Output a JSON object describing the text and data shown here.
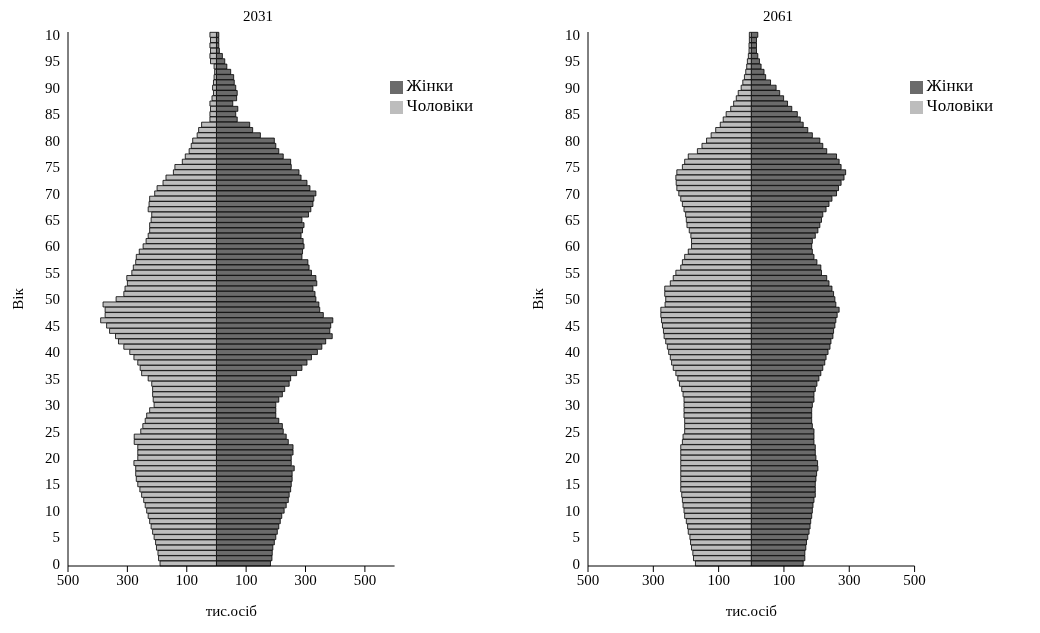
{
  "chart_data": [
    {
      "type": "bar",
      "title": "2031",
      "xlabel": "тис.осіб",
      "ylabel": "Вік",
      "orientation": "horizontal",
      "stacked": true,
      "legend": "top right",
      "categories": [
        "10",
        null,
        null,
        null,
        null,
        "95",
        null,
        null,
        null,
        null,
        "90",
        null,
        null,
        null,
        null,
        "85",
        null,
        null,
        null,
        null,
        "80",
        null,
        null,
        null,
        null,
        "75",
        null,
        null,
        null,
        null,
        "70",
        null,
        null,
        null,
        null,
        "65",
        null,
        null,
        null,
        null,
        "60",
        null,
        null,
        null,
        null,
        "55",
        null,
        null,
        null,
        null,
        "50",
        null,
        null,
        null,
        null,
        "45",
        null,
        null,
        null,
        null,
        "40",
        null,
        null,
        null,
        null,
        "35",
        null,
        null,
        null,
        null,
        "30",
        null,
        null,
        null,
        null,
        "25",
        null,
        null,
        null,
        null,
        "20",
        null,
        null,
        null,
        null,
        "15",
        null,
        null,
        null,
        null,
        "10",
        null,
        null,
        null,
        null,
        "5",
        null,
        null,
        null,
        null,
        "0"
      ],
      "xlim": [
        -500,
        600
      ],
      "xticks": [
        {
          "value": -500,
          "label": "500"
        },
        {
          "value": -300,
          "label": "300"
        },
        {
          "value": -100,
          "label": "100"
        },
        100,
        300,
        500
      ],
      "series": [
        {
          "name": "Жінки",
          "color": "#6b6b6b",
          "values": [
            8,
            8,
            8,
            10,
            20,
            28,
            35,
            48,
            58,
            60,
            65,
            70,
            68,
            55,
            72,
            65,
            70,
            112,
            122,
            148,
            195,
            200,
            210,
            225,
            250,
            252,
            278,
            285,
            305,
            315,
            335,
            328,
            325,
            318,
            310,
            288,
            295,
            290,
            285,
            292,
            295,
            290,
            288,
            308,
            312,
            320,
            335,
            338,
            325,
            332,
            335,
            345,
            348,
            360,
            392,
            385,
            382,
            390,
            368,
            355,
            340,
            320,
            305,
            288,
            270,
            250,
            245,
            230,
            222,
            210,
            200,
            200,
            200,
            210,
            222,
            225,
            235,
            242,
            258,
            258,
            252,
            252,
            262,
            255,
            255,
            252,
            250,
            245,
            242,
            235,
            228,
            220,
            215,
            210,
            205,
            200,
            195,
            190,
            188,
            187,
            182
          ]
        },
        {
          "name": "Чоловіки",
          "color": "#bdbdbd",
          "values": [
            -22,
            -20,
            -22,
            -20,
            -22,
            -20,
            -8,
            -6,
            -8,
            -10,
            -13,
            -10,
            -15,
            -22,
            -20,
            -22,
            -22,
            -50,
            -60,
            -65,
            -80,
            -85,
            -92,
            -105,
            -115,
            -140,
            -145,
            -170,
            -180,
            -200,
            -208,
            -225,
            -227,
            -230,
            -218,
            -220,
            -225,
            -225,
            -230,
            -237,
            -247,
            -260,
            -270,
            -272,
            -280,
            -285,
            -302,
            -300,
            -308,
            -312,
            -338,
            -382,
            -375,
            -375,
            -390,
            -370,
            -360,
            -340,
            -330,
            -312,
            -292,
            -278,
            -265,
            -257,
            -252,
            -230,
            -218,
            -215,
            -215,
            -213,
            -210,
            -225,
            -235,
            -240,
            -248,
            -255,
            -277,
            -277,
            -265,
            -265,
            -265,
            -278,
            -272,
            -272,
            -270,
            -265,
            -258,
            -252,
            -245,
            -240,
            -235,
            -230,
            -225,
            -220,
            -215,
            -210,
            -205,
            -202,
            -197,
            -195,
            -190
          ]
        }
      ]
    },
    {
      "type": "bar",
      "title": "2061",
      "xlabel": "тис.осіб",
      "ylabel": "Вік",
      "orientation": "horizontal",
      "stacked": true,
      "legend": "top right",
      "categories": [
        "10",
        null,
        null,
        null,
        null,
        "95",
        null,
        null,
        null,
        null,
        "90",
        null,
        null,
        null,
        null,
        "85",
        null,
        null,
        null,
        null,
        "80",
        null,
        null,
        null,
        null,
        "75",
        null,
        null,
        null,
        null,
        "70",
        null,
        null,
        null,
        null,
        "65",
        null,
        null,
        null,
        null,
        "60",
        null,
        null,
        null,
        null,
        "55",
        null,
        null,
        null,
        null,
        "50",
        null,
        null,
        null,
        null,
        "45",
        null,
        null,
        null,
        null,
        "40",
        null,
        null,
        null,
        null,
        "35",
        null,
        null,
        null,
        null,
        "30",
        null,
        null,
        null,
        null,
        "25",
        null,
        null,
        null,
        null,
        "20",
        null,
        null,
        null,
        null,
        "15",
        null,
        null,
        null,
        null,
        "10",
        null,
        null,
        null,
        null,
        "5",
        null,
        null,
        null,
        null,
        "0"
      ],
      "xlim": [
        -500,
        500
      ],
      "xticks": [
        {
          "value": -500,
          "label": "500"
        },
        {
          "value": -300,
          "label": "300"
        },
        {
          "value": -100,
          "label": "100"
        },
        100,
        300,
        500
      ],
      "series": [
        {
          "name": "Жінки",
          "color": "#6b6b6b",
          "values": [
            20,
            16,
            16,
            16,
            20,
            25,
            30,
            39,
            44,
            59,
            76,
            87,
            99,
            111,
            124,
            141,
            150,
            159,
            173,
            187,
            210,
            219,
            231,
            261,
            269,
            275,
            289,
            284,
            275,
            267,
            261,
            247,
            238,
            229,
            219,
            215,
            210,
            204,
            196,
            187,
            185,
            187,
            192,
            201,
            213,
            215,
            231,
            238,
            247,
            252,
            256,
            259,
            269,
            263,
            259,
            256,
            252,
            250,
            244,
            241,
            235,
            229,
            225,
            219,
            213,
            207,
            201,
            196,
            192,
            192,
            187,
            185,
            185,
            185,
            187,
            192,
            192,
            192,
            196,
            196,
            198,
            203,
            204,
            200,
            198,
            196,
            196,
            196,
            192,
            189,
            187,
            185,
            182,
            180,
            177,
            173,
            169,
            167,
            164,
            164,
            159
          ]
        },
        {
          "name": "Чоловіки",
          "color": "#bdbdbd",
          "values": [
            -6,
            -6,
            -7,
            -7,
            -9,
            -12,
            -14,
            -17,
            -21,
            -26,
            -31,
            -40,
            -46,
            -54,
            -63,
            -77,
            -86,
            -95,
            -109,
            -123,
            -137,
            -151,
            -165,
            -193,
            -204,
            -211,
            -228,
            -231,
            -230,
            -228,
            -222,
            -216,
            -211,
            -206,
            -201,
            -199,
            -197,
            -190,
            -185,
            -183,
            -183,
            -193,
            -204,
            -211,
            -216,
            -231,
            -239,
            -248,
            -265,
            -265,
            -262,
            -264,
            -277,
            -277,
            -275,
            -272,
            -269,
            -267,
            -262,
            -257,
            -253,
            -248,
            -244,
            -239,
            -231,
            -225,
            -220,
            -213,
            -209,
            -206,
            -206,
            -206,
            -206,
            -204,
            -204,
            -204,
            -209,
            -211,
            -216,
            -216,
            -216,
            -216,
            -216,
            -216,
            -216,
            -216,
            -216,
            -213,
            -211,
            -209,
            -206,
            -204,
            -199,
            -195,
            -193,
            -188,
            -186,
            -183,
            -179,
            -177,
            -171
          ]
        }
      ]
    }
  ]
}
